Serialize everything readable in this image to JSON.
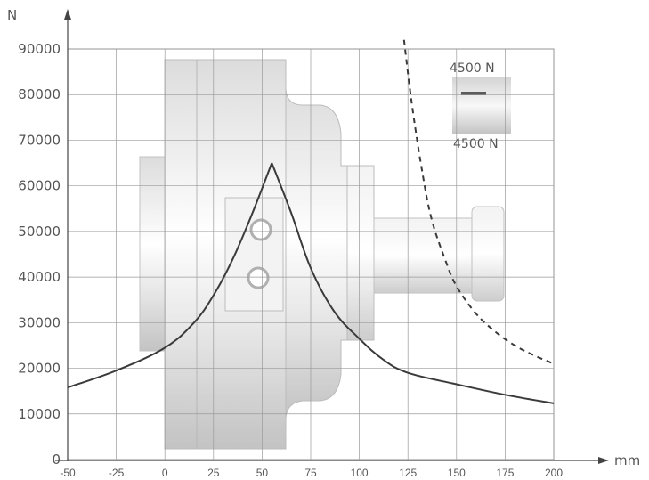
{
  "chart_data": {
    "type": "line",
    "xlabel": "mm",
    "ylabel": "N",
    "xlim": [
      -50,
      200
    ],
    "ylim": [
      0,
      92000
    ],
    "x_ticks": [
      "-50",
      "-25",
      "0",
      "25",
      "50",
      "75",
      "100",
      "125",
      "150",
      "175",
      "200"
    ],
    "y_ticks": [
      "0",
      "10000",
      "20000",
      "30000",
      "40000",
      "50000",
      "60000",
      "70000",
      "80000",
      "90000"
    ],
    "grid": true,
    "annotations": [
      "4500 N",
      "4500 N"
    ],
    "series": [
      {
        "style": "solid",
        "color": "#3a3a3a",
        "points": [
          [
            -50,
            15800
          ],
          [
            -25,
            19500
          ],
          [
            0,
            24500
          ],
          [
            15,
            30000
          ],
          [
            25,
            36000
          ],
          [
            35,
            44000
          ],
          [
            45,
            54000
          ],
          [
            55,
            65000
          ],
          [
            65,
            54000
          ],
          [
            75,
            42000
          ],
          [
            87,
            32500
          ],
          [
            100,
            26500
          ],
          [
            112,
            22000
          ],
          [
            125,
            19000
          ],
          [
            150,
            16500
          ],
          [
            175,
            14200
          ],
          [
            200,
            12300
          ]
        ]
      },
      {
        "style": "dashed",
        "color": "#3a3a3a",
        "points": [
          [
            123,
            92000
          ],
          [
            127,
            78000
          ],
          [
            132,
            64000
          ],
          [
            137,
            53000
          ],
          [
            144,
            44000
          ],
          [
            150,
            38000
          ],
          [
            160,
            32000
          ],
          [
            170,
            28000
          ],
          [
            180,
            25000
          ],
          [
            190,
            22800
          ],
          [
            200,
            21000
          ]
        ]
      }
    ]
  }
}
